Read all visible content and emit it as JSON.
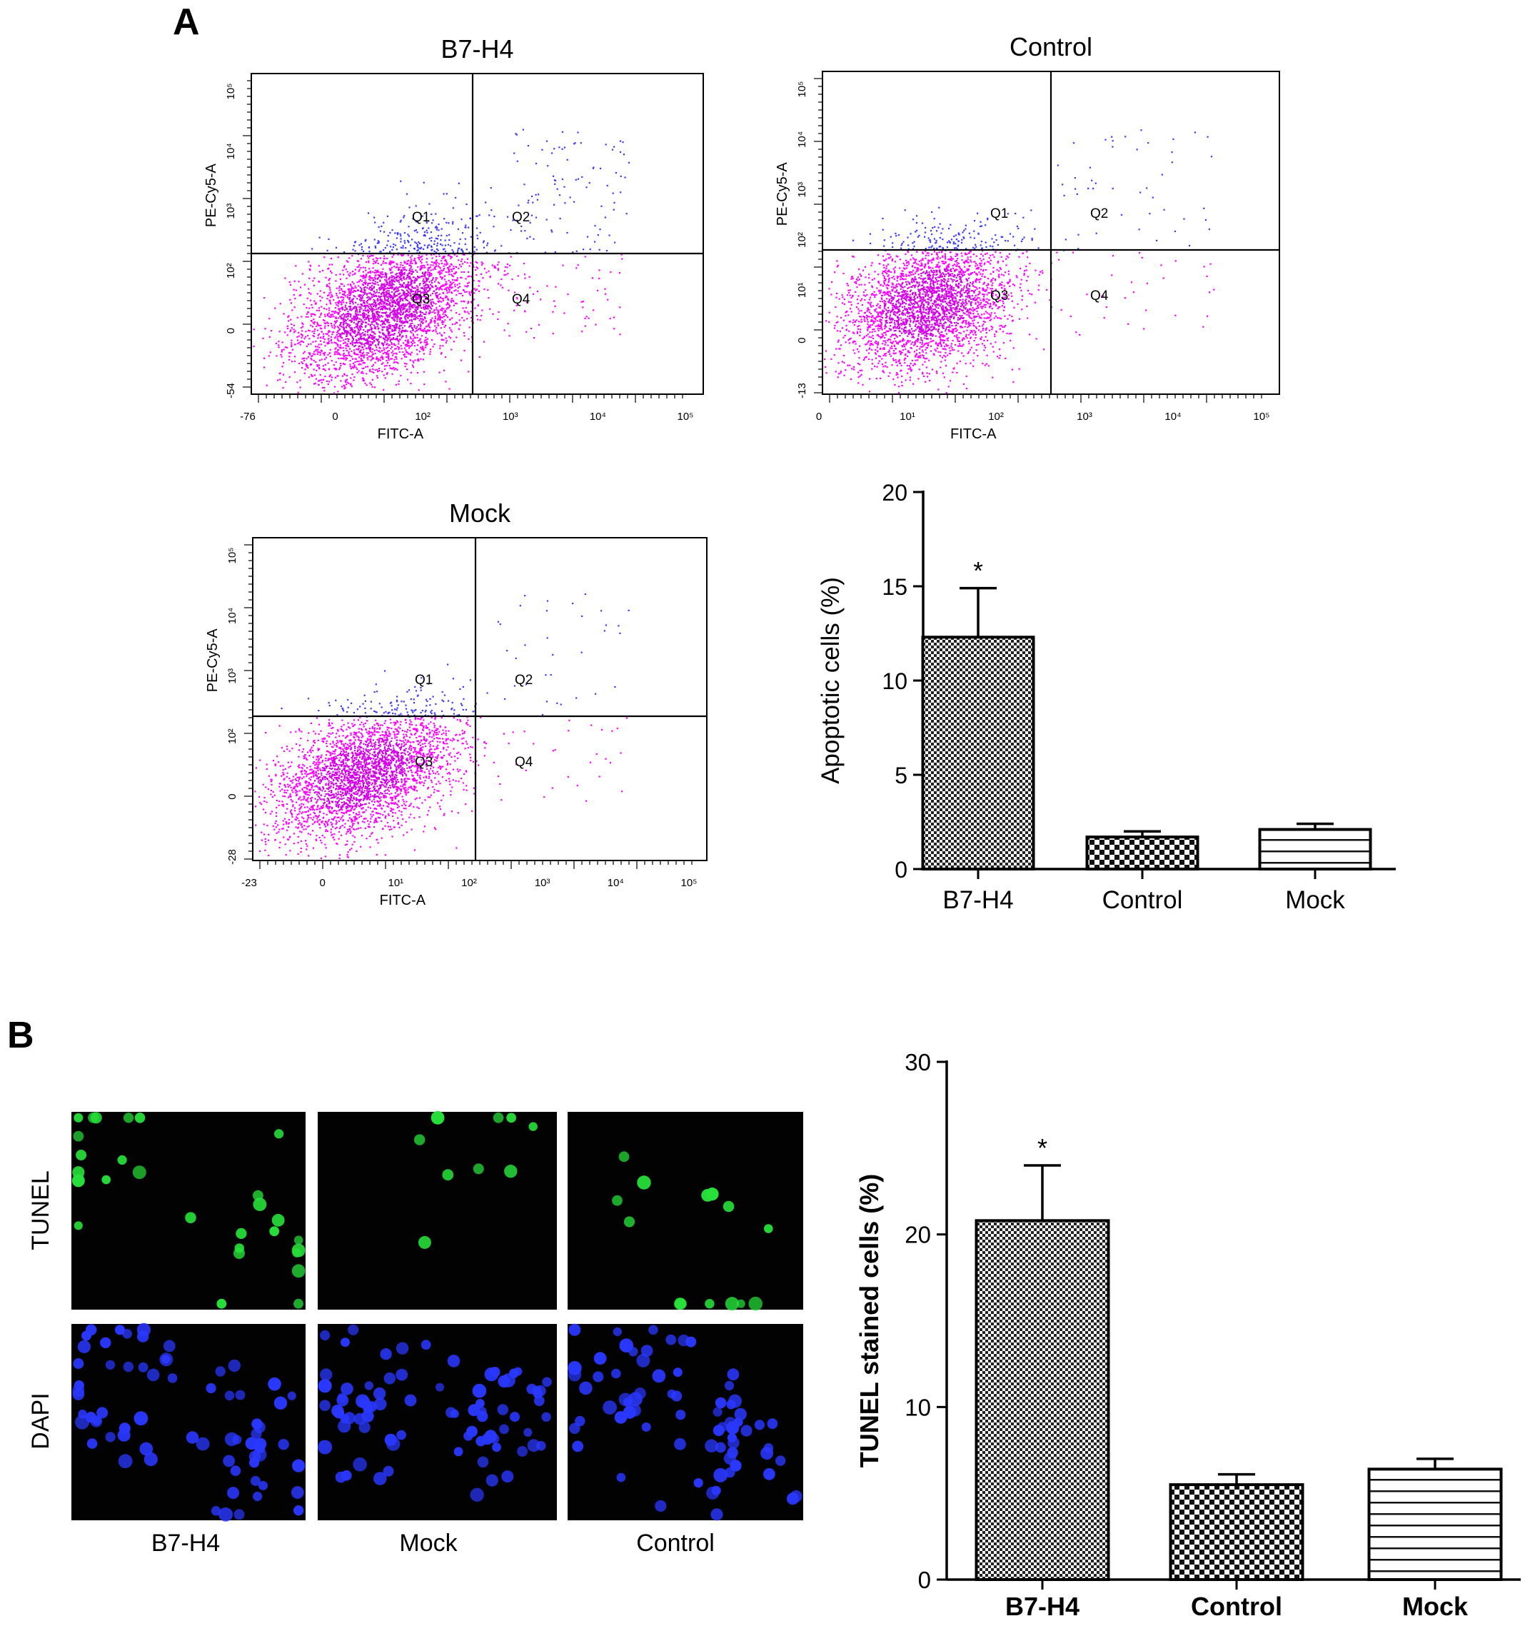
{
  "panels": {
    "a_label": "A",
    "b_label": "B"
  },
  "colors": {
    "axis": "#000000",
    "dot_upper": "#3a3aff",
    "dot_lower": "#ff00ff",
    "dot_core": "#d400e8",
    "tunel_green": "#27e03a",
    "dapi_blue": "#2a38ff",
    "micro_bg": "#020203"
  },
  "flow_plots": [
    {
      "title": "B7-H4",
      "xlabel": "FITC-A",
      "ylabel": "PE-Cy5-A",
      "xticks": [
        "-76",
        "0",
        "10²",
        "10³",
        "10⁴",
        "10⁵"
      ],
      "yticks": [
        "-54",
        "0",
        "10²",
        "10³",
        "10⁴",
        "10⁵"
      ],
      "quadrants": [
        "Q1",
        "Q2",
        "Q3",
        "Q4"
      ]
    },
    {
      "title": "Control",
      "xlabel": "FITC-A",
      "ylabel": "PE-Cy5-A",
      "xticks": [
        "0",
        "10¹",
        "10²",
        "10³",
        "10⁴",
        "10⁵"
      ],
      "yticks": [
        "-13",
        "0",
        "10¹",
        "10²",
        "10³",
        "10⁴",
        "10⁵"
      ],
      "quadrants": [
        "Q1",
        "Q2",
        "Q3",
        "Q4"
      ]
    },
    {
      "title": "Mock",
      "xlabel": "FITC-A",
      "ylabel": "PE-Cy5-A",
      "xticks": [
        "-23",
        "0",
        "10¹",
        "10²",
        "10³",
        "10⁴",
        "10⁵"
      ],
      "yticks": [
        "-28",
        "0",
        "10²",
        "10³",
        "10⁴",
        "10⁵"
      ],
      "quadrants": [
        "Q1",
        "Q2",
        "Q3",
        "Q4"
      ]
    }
  ],
  "microscopy": {
    "row_labels": [
      "TUNEL",
      "DAPI"
    ],
    "col_labels": [
      "B7-H4",
      "Mock",
      "Control"
    ]
  },
  "chart_data": [
    {
      "type": "bar",
      "title": "",
      "xlabel": "",
      "ylabel": "Apoptotic cells (%)",
      "categories": [
        "B7-H4",
        "Control",
        "Mock"
      ],
      "values": [
        12.3,
        1.7,
        2.1
      ],
      "errors": [
        2.6,
        0.3,
        0.3
      ],
      "significance": [
        "*",
        "",
        ""
      ],
      "patterns": [
        "checker-fine",
        "checker-coarse",
        "horizontal-lines"
      ],
      "ylim": [
        0,
        20
      ],
      "yticks": [
        0,
        5,
        10,
        15,
        20
      ]
    },
    {
      "type": "bar",
      "title": "",
      "xlabel": "",
      "ylabel": "TUNEL stained cells (%)",
      "categories": [
        "B7-H4",
        "Control",
        "Mock"
      ],
      "values": [
        20.8,
        5.5,
        6.4
      ],
      "errors": [
        3.2,
        0.6,
        0.6
      ],
      "significance": [
        "*",
        "",
        ""
      ],
      "patterns": [
        "checker-fine",
        "checker-coarse",
        "horizontal-lines"
      ],
      "ylim": [
        0,
        30
      ],
      "yticks": [
        0,
        10,
        20,
        30
      ]
    }
  ]
}
